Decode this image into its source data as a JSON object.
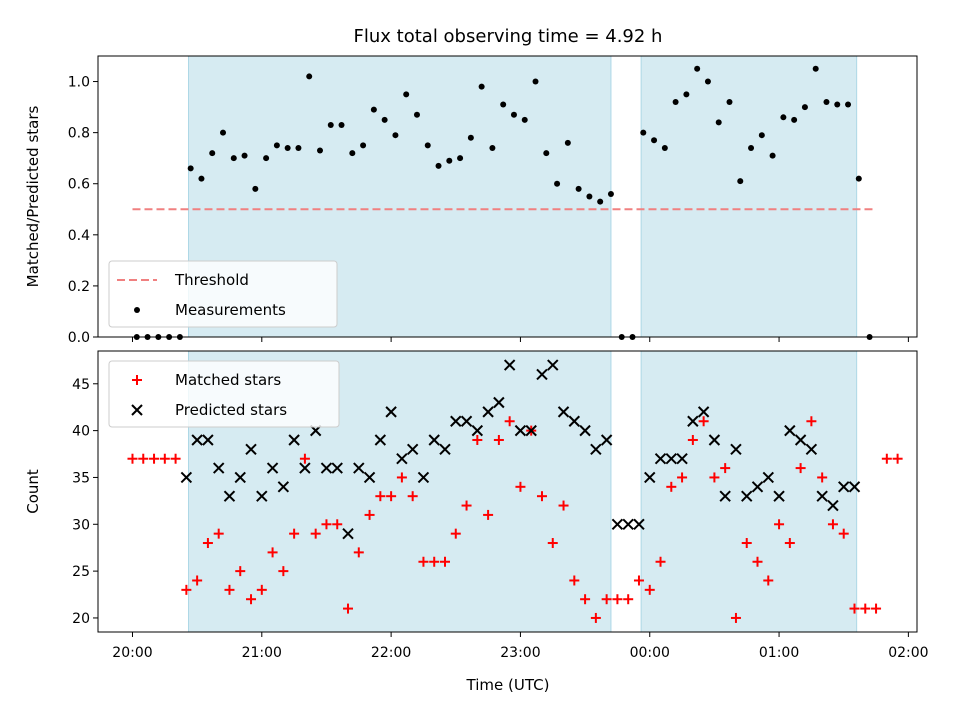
{
  "title": "Flux total observing time = 4.92 h",
  "xlabel": "Time (UTC)",
  "x_ticks": [
    "20:00",
    "21:00",
    "22:00",
    "23:00",
    "00:00",
    "01:00",
    "02:00"
  ],
  "chart_data": [
    {
      "type": "scatter",
      "ylabel": "Matched/Predicted stars",
      "ylim": [
        0.0,
        1.1
      ],
      "y_ticks": [
        "0.0",
        "0.2",
        "0.4",
        "0.6",
        "0.8",
        "1.0"
      ],
      "xlim": [
        "19:44",
        "02:04"
      ],
      "shaded_intervals": [
        [
          "20:26",
          "23:42"
        ],
        [
          "23:56",
          "01:36"
        ]
      ],
      "legend": {
        "position": "lower-left",
        "entries": [
          "Threshold",
          "Measurements"
        ]
      },
      "series": [
        {
          "name": "Threshold",
          "style": "dashed-line",
          "color": "#f08080",
          "x": [
            "20:00",
            "01:45"
          ],
          "y": [
            0.5,
            0.5
          ]
        },
        {
          "name": "Measurements",
          "style": "dot",
          "color": "#000000",
          "x": [
            "20:02",
            "20:07",
            "20:12",
            "20:17",
            "20:22",
            "20:27",
            "20:32",
            "20:37",
            "20:42",
            "20:47",
            "20:52",
            "20:57",
            "21:02",
            "21:07",
            "21:12",
            "21:17",
            "21:22",
            "21:27",
            "21:32",
            "21:37",
            "21:42",
            "21:47",
            "21:52",
            "21:57",
            "22:02",
            "22:07",
            "22:12",
            "22:17",
            "22:22",
            "22:27",
            "22:32",
            "22:37",
            "22:42",
            "22:47",
            "22:52",
            "22:57",
            "23:02",
            "23:07",
            "23:12",
            "23:17",
            "23:22",
            "23:27",
            "23:32",
            "23:37",
            "23:42",
            "23:47",
            "23:52",
            "23:57",
            "00:02",
            "00:07",
            "00:12",
            "00:17",
            "00:22",
            "00:27",
            "00:32",
            "00:37",
            "00:42",
            "00:47",
            "00:52",
            "00:57",
            "01:02",
            "01:07",
            "01:12",
            "01:17",
            "01:22",
            "01:27",
            "01:32",
            "01:37",
            "01:42"
          ],
          "y": [
            0.0,
            0.0,
            0.0,
            0.0,
            0.0,
            0.66,
            0.62,
            0.72,
            0.8,
            0.7,
            0.71,
            0.58,
            0.7,
            0.75,
            0.74,
            0.74,
            1.02,
            0.73,
            0.83,
            0.83,
            0.72,
            0.75,
            0.89,
            0.85,
            0.79,
            0.95,
            0.87,
            0.75,
            0.67,
            0.69,
            0.7,
            0.78,
            0.98,
            0.74,
            0.91,
            0.87,
            0.85,
            1.0,
            0.72,
            0.6,
            0.76,
            0.58,
            0.55,
            0.53,
            0.56,
            0.0,
            0.0,
            0.8,
            0.77,
            0.74,
            0.92,
            0.95,
            1.05,
            1.0,
            0.84,
            0.92,
            0.61,
            0.74,
            0.79,
            0.71,
            0.86,
            0.85,
            0.9,
            1.05,
            0.92,
            0.91,
            0.91,
            0.62,
            0.0
          ]
        }
      ]
    },
    {
      "type": "scatter",
      "ylabel": "Count",
      "ylim": [
        18.5,
        48.5
      ],
      "y_ticks": [
        "20",
        "25",
        "30",
        "35",
        "40",
        "45"
      ],
      "xlim": [
        "19:44",
        "02:04"
      ],
      "shaded_intervals": [
        [
          "20:26",
          "23:42"
        ],
        [
          "23:56",
          "01:36"
        ]
      ],
      "legend": {
        "position": "upper-left",
        "entries": [
          "Matched stars",
          "Predicted stars"
        ]
      },
      "series": [
        {
          "name": "Matched stars",
          "marker": "+",
          "color": "#ff0000",
          "x": [
            "20:00",
            "20:05",
            "20:10",
            "20:15",
            "20:20",
            "20:25",
            "20:30",
            "20:35",
            "20:40",
            "20:45",
            "20:50",
            "20:55",
            "21:00",
            "21:05",
            "21:10",
            "21:15",
            "21:20",
            "21:25",
            "21:30",
            "21:35",
            "21:40",
            "21:45",
            "21:50",
            "21:55",
            "22:00",
            "22:05",
            "22:10",
            "22:15",
            "22:20",
            "22:25",
            "22:30",
            "22:35",
            "22:40",
            "22:45",
            "22:50",
            "22:55",
            "23:00",
            "23:05",
            "23:10",
            "23:15",
            "23:20",
            "23:25",
            "23:30",
            "23:35",
            "23:40",
            "23:45",
            "23:50",
            "23:55",
            "00:00",
            "00:05",
            "00:10",
            "00:15",
            "00:20",
            "00:25",
            "00:30",
            "00:35",
            "00:40",
            "00:45",
            "00:50",
            "00:55",
            "01:00",
            "01:05",
            "01:10",
            "01:15",
            "01:20",
            "01:25",
            "01:30",
            "01:35",
            "01:40",
            "01:45",
            "01:50",
            "01:55"
          ],
          "y": [
            37,
            37,
            37,
            37,
            37,
            23,
            24,
            28,
            29,
            23,
            25,
            22,
            23,
            27,
            25,
            29,
            37,
            29,
            30,
            30,
            21,
            27,
            31,
            33,
            33,
            35,
            33,
            26,
            26,
            26,
            29,
            32,
            39,
            31,
            39,
            41,
            34,
            40,
            33,
            28,
            32,
            24,
            22,
            20,
            22,
            22,
            22,
            24,
            23,
            26,
            34,
            35,
            39,
            41,
            35,
            36,
            20,
            28,
            26,
            24,
            30,
            28,
            36,
            41,
            35,
            30,
            29,
            21,
            21,
            21,
            37,
            37
          ]
        },
        {
          "name": "Predicted stars",
          "marker": "x",
          "color": "#000000",
          "x": [
            "20:25",
            "20:30",
            "20:35",
            "20:40",
            "20:45",
            "20:50",
            "20:55",
            "21:00",
            "21:05",
            "21:10",
            "21:15",
            "21:20",
            "21:25",
            "21:30",
            "21:35",
            "21:40",
            "21:45",
            "21:50",
            "21:55",
            "22:00",
            "22:05",
            "22:10",
            "22:15",
            "22:20",
            "22:25",
            "22:30",
            "22:35",
            "22:40",
            "22:45",
            "22:50",
            "22:55",
            "23:00",
            "23:05",
            "23:10",
            "23:15",
            "23:20",
            "23:25",
            "23:30",
            "23:35",
            "23:40",
            "23:45",
            "23:50",
            "23:55",
            "00:00",
            "00:05",
            "00:10",
            "00:15",
            "00:20",
            "00:25",
            "00:30",
            "00:35",
            "00:40",
            "00:45",
            "00:50",
            "00:55",
            "01:00",
            "01:05",
            "01:10",
            "01:15",
            "01:20",
            "01:25",
            "01:30",
            "01:35"
          ],
          "y": [
            35,
            39,
            39,
            36,
            33,
            35,
            38,
            33,
            36,
            34,
            39,
            36,
            40,
            36,
            36,
            29,
            36,
            35,
            39,
            42,
            37,
            38,
            35,
            39,
            38,
            41,
            41,
            40,
            42,
            43,
            47,
            40,
            40,
            46,
            47,
            42,
            41,
            40,
            38,
            39,
            30,
            30,
            30,
            35,
            37,
            37,
            37,
            41,
            42,
            39,
            33,
            38,
            33,
            34,
            35,
            33,
            40,
            39,
            38,
            33,
            32,
            34,
            34
          ]
        }
      ]
    }
  ]
}
